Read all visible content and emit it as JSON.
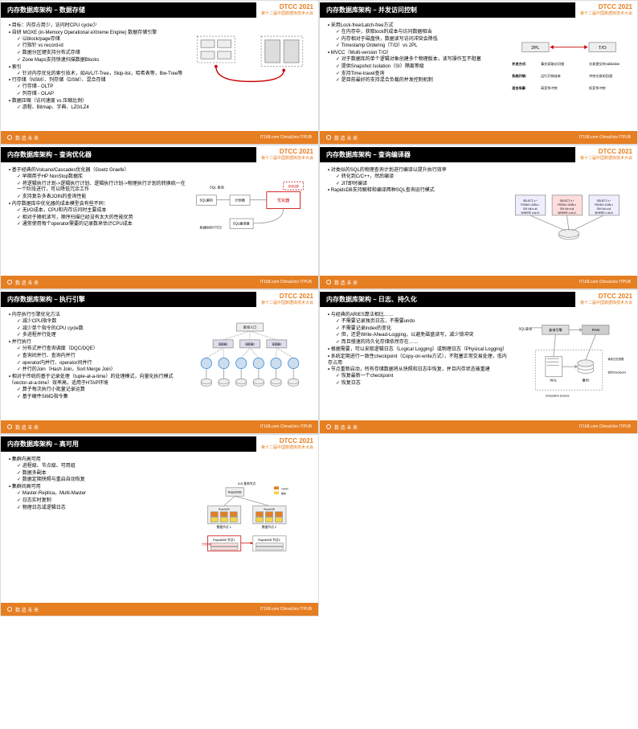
{
  "event": {
    "logo": "DTCC 2021",
    "subtitle": "第十二届中国数据库技术大会"
  },
  "footer": {
    "slogan": "数 造 未 来",
    "sponsors": "IT168.com  ChinaUnix  ITPUB"
  },
  "slides": [
    {
      "title": "内存数据库架构 – 数据存储",
      "bullets": [
        {
          "t": "目标：内存占用少，访问时CPU cycle少"
        },
        {
          "t": "自研 MOXE (in-Memory Operational eXtreme Engine) 数据存储引擎",
          "sub": [
            "以block/page存储",
            "行指针 vs record-id",
            "数据分区键支持分布式存储",
            "Zone Maps支持快速扫描数据Blocks"
          ]
        },
        {
          "t": "索引",
          "sub": [
            "针对内存优化的索引技术，如AVL/T-Tree，Skip-list，哈希表等，Bw-Tree等"
          ]
        },
        {
          "t": "行存储（NSM）、列存储（DSM）、混合存储",
          "sub": [
            "行存储 - OLTP",
            "列存储 - OLAP"
          ]
        },
        {
          "t": "数据压缩（访问速度 vs 压缩比例）",
          "sub": [
            "游程、Bitmap、字典、LZ0/LZ4"
          ]
        }
      ],
      "diagram": "storage"
    },
    {
      "title": "内存数据库架构 – 并发访问控制",
      "bullets": [
        {
          "t": "采用Lock-free/Latch-free方式",
          "sub": [
            "在内存中，获取lock的成本与访问数据相当",
            "内存相对于磁盘快，数据读写访问冲突会降低",
            "Timestamp Ordering（T/O）vs 2PL"
          ]
        },
        {
          "t": "MVCC（Multi-version T/O）",
          "sub": [
            "对于数据库的单个逻辑对象创建多个物理版本，读写操作互不阻塞",
            "提供Snapshot Isolation（SI）隔离等级",
            "支持Time-travel查询",
            "是目前最好的支持混合负载的并发控制机制"
          ]
        }
      ],
      "diagram": "mvcc"
    },
    {
      "title": "内存数据库架构 – 查询优化器",
      "bullets": [
        {
          "t": "基于经典的Volcano/Cascades优化器（Goetz Graefe）",
          "sub": [
            "早期用于HP NonStop数据库",
            "将逻辑执行计划->逻辑执行计划、逻辑执行计划->物理执行计划的转换统一在一个阶段进行，可以降低冗余工作",
            "支持复杂多表JOIN的查询性能"
          ]
        },
        {
          "t": "内存数据库中优化器的成本模型会有些不同：",
          "sub": [
            "无I/O成本，CPU和内存访问时主要成本",
            "相对于随机读写，顺序扫描已经没有太大的性能优势",
            "通常使用每个operator需要的记录数来估计CPU成本"
          ]
        }
      ],
      "diagram": "optimizer"
    },
    {
      "title": "内存数据库架构 – 查询编译器",
      "bullets": [
        {
          "t": "对类似的SQL的物理查询计划进行编译以提升执行效率",
          "sub": [
            "转化到C/C++，然后编译",
            "JIT即时编译"
          ]
        },
        {
          "t": "RapidsDB支持解释和编译两种SQL查询运行模式"
        }
      ],
      "diagram": "compiler"
    },
    {
      "title": "内存数据库架构 – 执行引擎",
      "bullets": [
        {
          "t": "内存执行引擎优化方法",
          "sub": [
            "减少CPU指令数",
            "减少单个指令的CPU cycle数",
            "多进程并行处理"
          ]
        },
        {
          "t": "并行执行",
          "sub": [
            "分布式并行查询调度（DQC/DQE）",
            "查询间并行、查询内并行",
            "operator内并行、operator间并行",
            "并行的Join（Hash Join，Sort Merge Join）"
          ]
        },
        {
          "t": "相对于传统的基于记录处理（tuple-at-a-time）的处理模式，向量化执行模式（vector-at-a-time）效率高，适用于HTAP环境",
          "sub": [
            "算子每次执行小批量记录运算",
            "基于硬件SIMD指令集"
          ]
        }
      ],
      "diagram": "engine"
    },
    {
      "title": "内存数据库架构 – 日志、持久化",
      "bullets": [
        {
          "t": "与经典的ARIES算法相比……",
          "sub": [
            "不需要记录独页日志，不需要undo",
            "不需要记录index的变化",
            "但，还是Write-Ahead-Logging，以避免磁盘读写，减少锁冲突",
            "而且慢速的持久化存储依然存在……"
          ]
        },
        {
          "t": "根据需要，可以采取逻辑日志（Logical Logging）或物理日志（Physical Logging）"
        },
        {
          "t": "系统定期进行一致性checkpoint（Copy-on-write方式），不阻塞正常交易处理，低内存占用"
        },
        {
          "t": "节点重新启动，所有存储数据将从快照和日志中恢复，并且内存状态被重建",
          "sub": [
            "恢复最新一个checkpoint",
            "恢复日志"
          ]
        }
      ],
      "diagram": "log"
    },
    {
      "title": "内存数据库架构 – 高可用",
      "bullets": [
        {
          "t": "集群内高可用",
          "sub": [
            "进程级、节点级、可用组",
            "数据多副本",
            "数据定期快照与重启自动恢复"
          ]
        },
        {
          "t": "集群间高可用",
          "sub": [
            "Master-Replica，Multi-Master",
            "日志实时复制",
            "物理日志或逻辑日志"
          ]
        }
      ],
      "diagram": "ha"
    }
  ],
  "mvcc_table": {
    "cols": [
      "2PL",
      "T/O"
    ],
    "rows": [
      [
        "并发方式",
        "事先获取访问锁",
        "交易提交时validation"
      ],
      [
        "系统开销",
        "运行开销成本",
        "冲突交易的回滚"
      ],
      [
        "适合场景",
        "高竞争冲突",
        "低竞争冲突"
      ]
    ]
  },
  "colors": {
    "orange": "#e67e22",
    "black": "#000000",
    "red": "#cc0000",
    "gray": "#cccccc",
    "blue": "#4a90d9",
    "yellow": "#f5d547"
  }
}
